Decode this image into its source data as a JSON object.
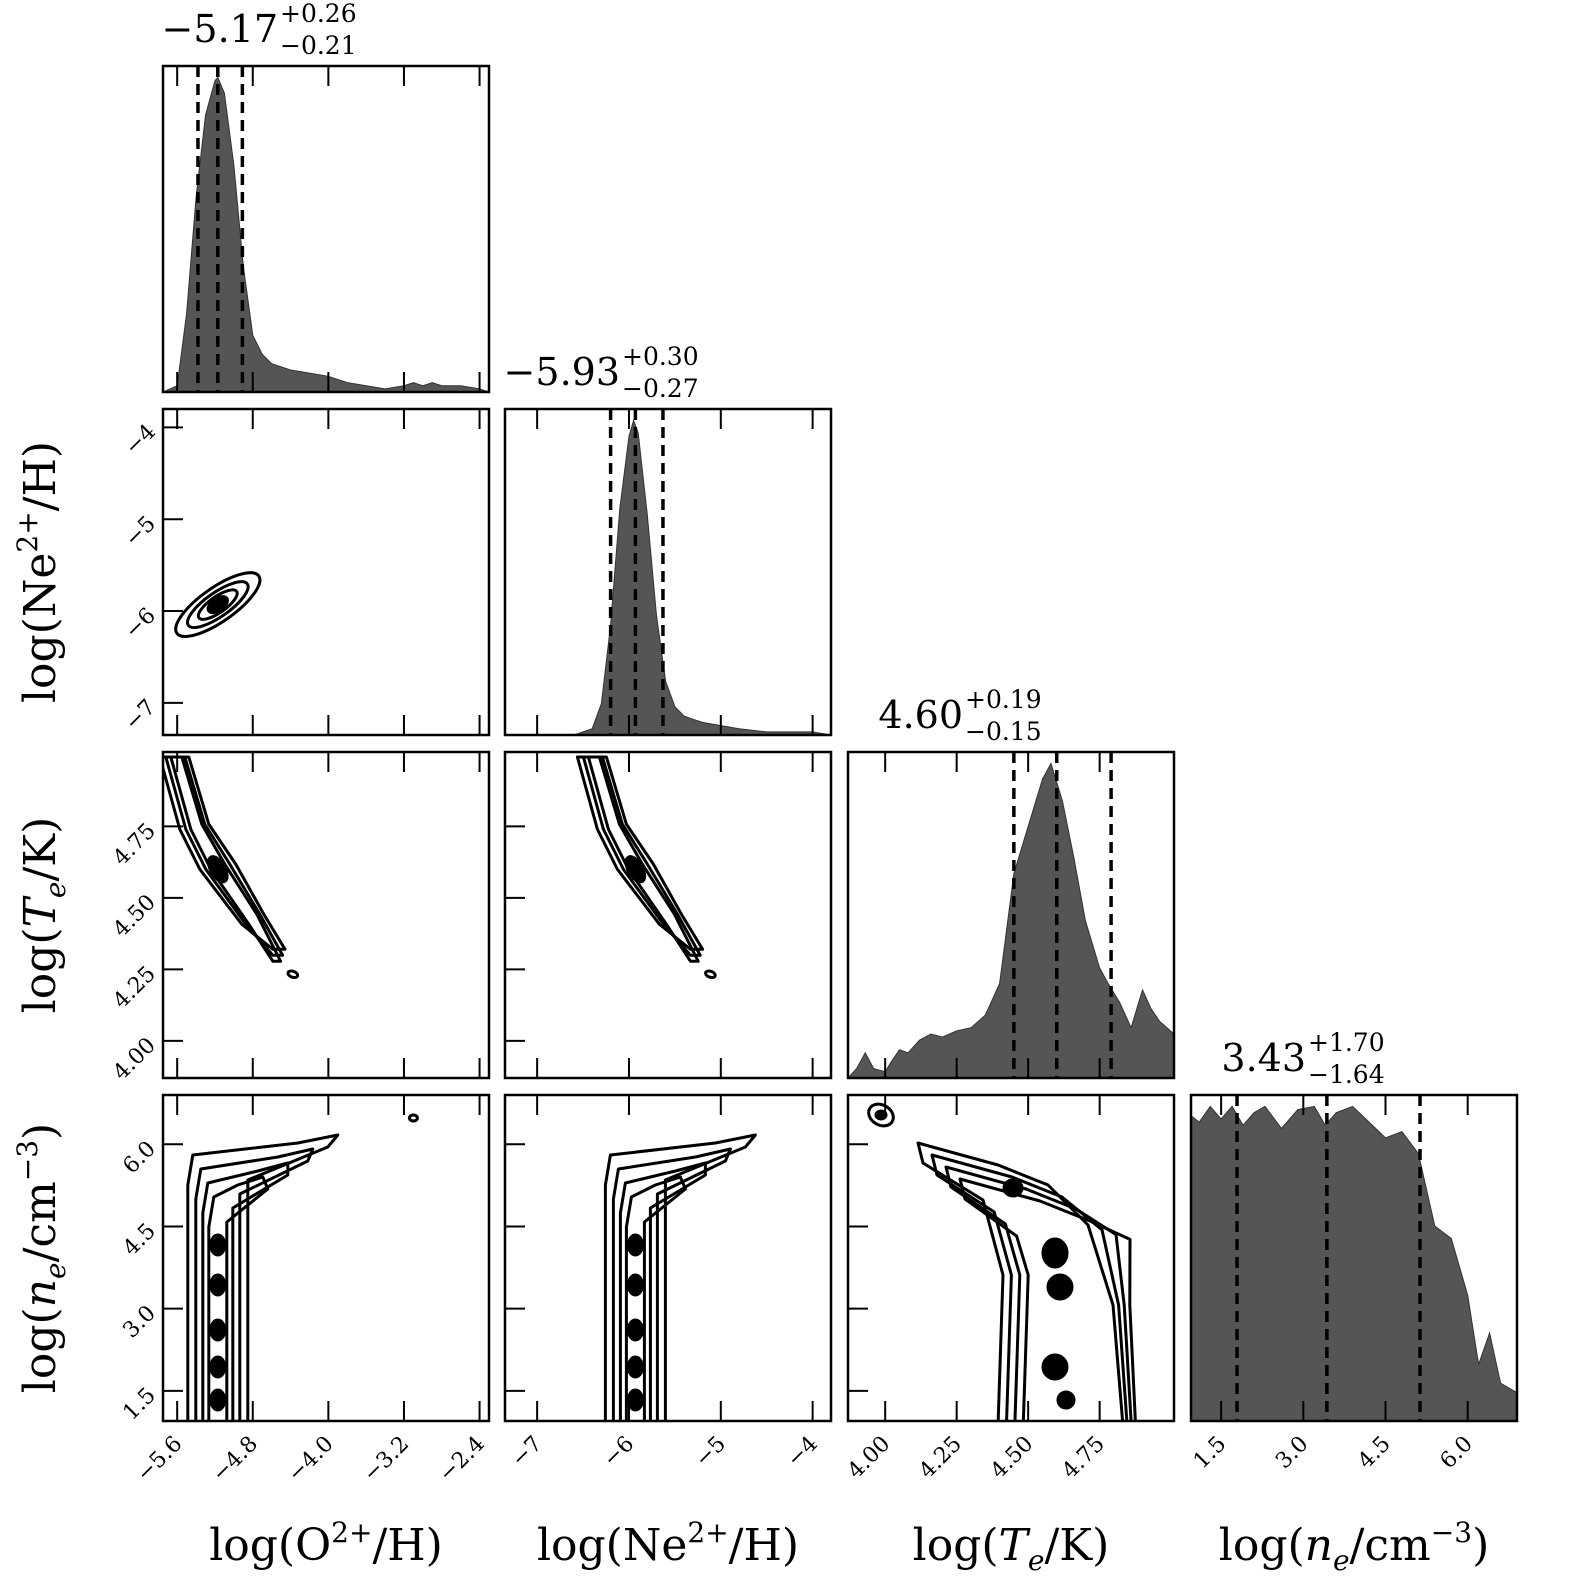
{
  "chart_data": {
    "type": "corner",
    "parameters": [
      {
        "name": "log(O2+/H)",
        "label_base": "log(O",
        "label_sup": "2+",
        "label_tail": "/H)",
        "range": [
          -5.75,
          -2.3
        ],
        "ticks": [
          "−5.6",
          "−4.8",
          "−4.0",
          "−3.2",
          "−2.4"
        ],
        "tick_values": [
          -5.6,
          -4.8,
          -4.0,
          -3.2,
          -2.4
        ]
      },
      {
        "name": "log(Ne2+/H)",
        "label_base": "log(Ne",
        "label_sup": "2+",
        "label_tail": "/H)",
        "range": [
          -7.35,
          -3.8
        ],
        "ticks": [
          "−7",
          "−6",
          "−5",
          "−4"
        ],
        "tick_values": [
          -7,
          -6,
          -5,
          -4
        ]
      },
      {
        "name": "log(Te/K)",
        "label_base": "log(",
        "label_italic": "T",
        "label_sub": "e",
        "label_tail": "/K)",
        "range": [
          3.87,
          5.01
        ],
        "ticks": [
          "4.00",
          "4.25",
          "4.50",
          "4.75"
        ],
        "tick_values": [
          4.0,
          4.25,
          4.5,
          4.75
        ]
      },
      {
        "name": "log(ne/cm-3)",
        "label_base": "log(",
        "label_italic": "n",
        "label_sub": "e",
        "label_tail": "/cm",
        "label_sup": "−3",
        "label_end": ")",
        "range": [
          0.95,
          6.9
        ],
        "ticks": [
          "1.5",
          "3.0",
          "4.5",
          "6.0"
        ],
        "tick_values": [
          1.5,
          3.0,
          4.5,
          6.0
        ]
      }
    ],
    "titles": [
      {
        "value": "−5.17",
        "plus": "+0.26",
        "minus": "−0.21"
      },
      {
        "value": "−5.93",
        "plus": "+0.30",
        "minus": "−0.27"
      },
      {
        "value": "4.60",
        "plus": "+0.19",
        "minus": "−0.15"
      },
      {
        "value": "3.43",
        "plus": "+1.70",
        "minus": "−1.64"
      }
    ],
    "quantiles": [
      [
        -5.38,
        -5.17,
        -4.91
      ],
      [
        -6.2,
        -5.93,
        -5.63
      ],
      [
        4.45,
        4.6,
        4.79
      ],
      [
        1.79,
        3.43,
        5.13
      ]
    ],
    "histograms": [
      {
        "x": [
          -5.75,
          -5.6,
          -5.5,
          -5.4,
          -5.3,
          -5.2,
          -5.17,
          -5.1,
          -5.0,
          -4.9,
          -4.8,
          -4.7,
          -4.6,
          -4.4,
          -4.2,
          -4.0,
          -3.8,
          -3.6,
          -3.4,
          -3.2,
          -3.1,
          -3.0,
          -2.9,
          -2.8,
          -2.6,
          -2.4,
          -2.3
        ],
        "density": [
          0,
          0.02,
          0.25,
          0.62,
          0.88,
          0.99,
          1.0,
          0.95,
          0.72,
          0.4,
          0.18,
          0.12,
          0.09,
          0.07,
          0.06,
          0.05,
          0.03,
          0.02,
          0.01,
          0.02,
          0.03,
          0.02,
          0.03,
          0.02,
          0.02,
          0.01,
          0.0
        ]
      },
      {
        "x": [
          -7.35,
          -7.0,
          -6.8,
          -6.6,
          -6.4,
          -6.3,
          -6.2,
          -6.1,
          -6.0,
          -5.95,
          -5.9,
          -5.8,
          -5.7,
          -5.6,
          -5.5,
          -5.4,
          -5.3,
          -5.2,
          -5.0,
          -4.8,
          -4.5,
          -4.3,
          -4.0,
          -3.8
        ],
        "density": [
          0,
          0,
          0,
          0.0,
          0.02,
          0.1,
          0.35,
          0.72,
          0.95,
          1.0,
          0.96,
          0.7,
          0.38,
          0.17,
          0.09,
          0.06,
          0.05,
          0.04,
          0.03,
          0.02,
          0.01,
          0.01,
          0.01,
          0.0
        ]
      },
      {
        "x": [
          3.87,
          3.9,
          3.93,
          3.96,
          4.0,
          4.02,
          4.05,
          4.08,
          4.12,
          4.16,
          4.2,
          4.25,
          4.3,
          4.35,
          4.4,
          4.45,
          4.5,
          4.55,
          4.58,
          4.62,
          4.66,
          4.7,
          4.75,
          4.78,
          4.82,
          4.86,
          4.9,
          4.93,
          4.96,
          5.01
        ],
        "density": [
          0,
          0.03,
          0.08,
          0.03,
          0.02,
          0.05,
          0.09,
          0.08,
          0.12,
          0.14,
          0.13,
          0.15,
          0.16,
          0.2,
          0.3,
          0.65,
          0.8,
          0.95,
          1.0,
          0.88,
          0.7,
          0.5,
          0.35,
          0.3,
          0.24,
          0.16,
          0.28,
          0.22,
          0.18,
          0.14
        ]
      },
      {
        "x": [
          0.95,
          1.1,
          1.3,
          1.5,
          1.7,
          1.9,
          2.1,
          2.3,
          2.6,
          2.9,
          3.2,
          3.4,
          3.6,
          3.9,
          4.2,
          4.5,
          4.8,
          5.1,
          5.4,
          5.7,
          6.0,
          6.2,
          6.4,
          6.6,
          6.9
        ],
        "density": [
          0.97,
          0.95,
          1.0,
          0.96,
          1.0,
          0.94,
          0.98,
          1.0,
          0.93,
          0.99,
          1.0,
          0.94,
          0.98,
          1.0,
          0.95,
          0.9,
          0.92,
          0.85,
          0.62,
          0.58,
          0.4,
          0.18,
          0.28,
          0.12,
          0.09
        ]
      }
    ],
    "contour_panels": [
      {
        "x_param": 0,
        "y_param": 1,
        "center": [
          -5.17,
          -5.93
        ],
        "note": "tight elongated blob"
      },
      {
        "x_param": 0,
        "y_param": 2,
        "center": [
          -5.17,
          4.6
        ],
        "note": "narrow anti-correlated band"
      },
      {
        "x_param": 1,
        "y_param": 2,
        "center": [
          -5.93,
          4.6
        ],
        "note": "narrow anti-correlated band"
      },
      {
        "x_param": 0,
        "y_param": 3,
        "center": [
          -5.17,
          3.43
        ],
        "note": "vertical band"
      },
      {
        "x_param": 1,
        "y_param": 3,
        "center": [
          -5.93,
          3.43
        ],
        "note": "vertical band"
      },
      {
        "x_param": 2,
        "y_param": 3,
        "center": [
          4.6,
          3.43
        ],
        "note": "broad multi-modal region"
      }
    ],
    "colors": {
      "histogram_fill": "#555555",
      "line": "#000000",
      "contour_fill": "#000000"
    },
    "grid": false,
    "legend": "none"
  }
}
